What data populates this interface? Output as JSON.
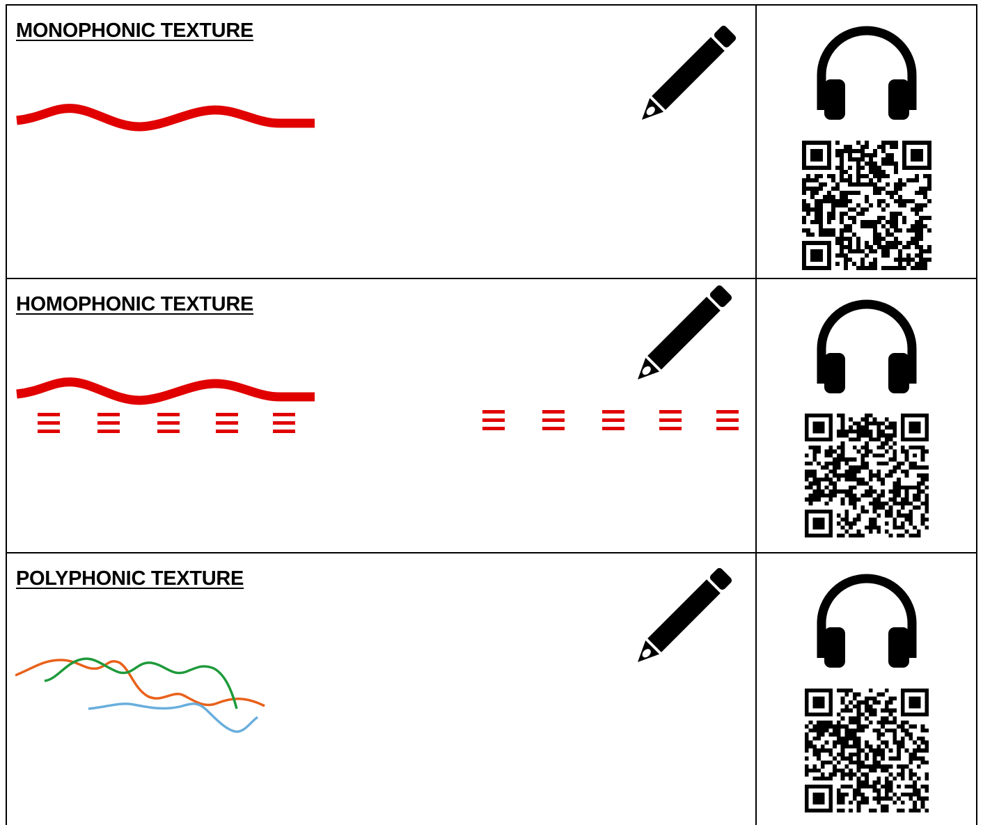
{
  "rows": [
    {
      "heading": "MONOPHONIC TEXTURE",
      "pencil_icon": "pencil-icon",
      "listen_icon": "headphones-icon",
      "qr": "qr-code"
    },
    {
      "heading": "HOMOPHONIC TEXTURE",
      "pencil_icon": "pencil-icon",
      "listen_icon": "headphones-icon",
      "qr": "qr-code"
    },
    {
      "heading": "POLYPHONIC TEXTURE",
      "pencil_icon": "pencil-icon",
      "listen_icon": "headphones-icon",
      "qr": "qr-code"
    }
  ],
  "colors": {
    "melody": "#e00000",
    "chords": "#e00000",
    "voice_orange": "#e8611a",
    "voice_green": "#1e9a3a",
    "voice_blue": "#69aedc",
    "icon": "#000000",
    "border": "#000000"
  }
}
